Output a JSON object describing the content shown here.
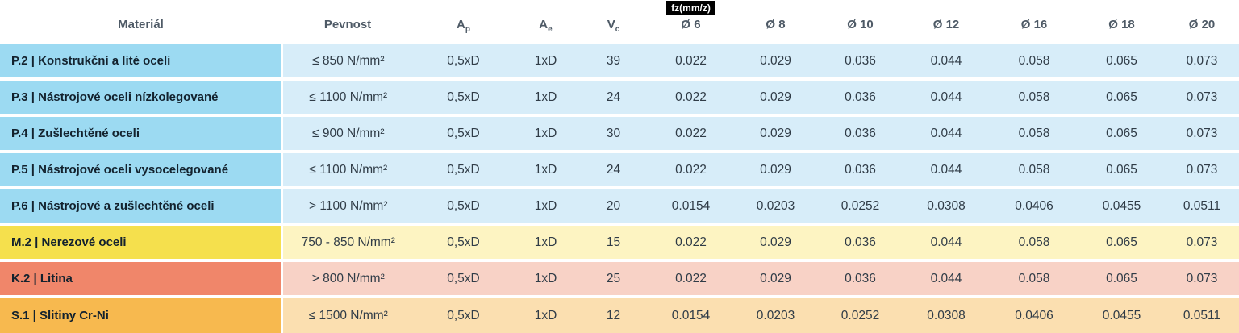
{
  "colors": {
    "header_text": "#4e5a66",
    "data_text": "#303c47",
    "material_text": "#13222e",
    "badge_bg": "#000000",
    "badge_text": "#ffffff",
    "themes": {
      "blue": {
        "material": "#9cdaf2",
        "row": "#d7edf9"
      },
      "yellow": {
        "material": "#f5e04d",
        "row": "#fdf4c2"
      },
      "salmon": {
        "material": "#f0866a",
        "row": "#f8d2c6"
      },
      "orange": {
        "material": "#f7b94f",
        "row": "#fbdfb0"
      }
    }
  },
  "chart_data": {
    "type": "table",
    "headers": {
      "material": "Materiál",
      "pevnost": "Pevnost",
      "ap_base": "A",
      "ap_sub": "p",
      "ae_base": "A",
      "ae_sub": "e",
      "vc_base": "V",
      "vc_sub": "c",
      "fz_badge": "fz(mm/z)",
      "diameters": [
        "Ø 6",
        "Ø 8",
        "Ø 10",
        "Ø 12",
        "Ø 16",
        "Ø 18",
        "Ø 20"
      ]
    },
    "rows": [
      {
        "material": "P.2 | Konstrukční a lité oceli",
        "pevnost": "≤ 850 N/mm²",
        "ap": "0,5xD",
        "ae": "1xD",
        "vc": "39",
        "theme": "blue",
        "fz": [
          "0.022",
          "0.029",
          "0.036",
          "0.044",
          "0.058",
          "0.065",
          "0.073"
        ]
      },
      {
        "material": "P.3 | Nástrojové oceli nízkolegované",
        "pevnost": "≤ 1100 N/mm²",
        "ap": "0,5xD",
        "ae": "1xD",
        "vc": "24",
        "theme": "blue",
        "fz": [
          "0.022",
          "0.029",
          "0.036",
          "0.044",
          "0.058",
          "0.065",
          "0.073"
        ]
      },
      {
        "material": "P.4 | Zušlechtěné oceli",
        "pevnost": "≤ 900 N/mm²",
        "ap": "0,5xD",
        "ae": "1xD",
        "vc": "30",
        "theme": "blue",
        "fz": [
          "0.022",
          "0.029",
          "0.036",
          "0.044",
          "0.058",
          "0.065",
          "0.073"
        ]
      },
      {
        "material": "P.5 | Nástrojové oceli vysocelegované",
        "pevnost": "≤ 1100 N/mm²",
        "ap": "0,5xD",
        "ae": "1xD",
        "vc": "24",
        "theme": "blue",
        "fz": [
          "0.022",
          "0.029",
          "0.036",
          "0.044",
          "0.058",
          "0.065",
          "0.073"
        ]
      },
      {
        "material": "P.6 | Nástrojové a zušlechtěné oceli",
        "pevnost": "> 1100 N/mm²",
        "ap": "0,5xD",
        "ae": "1xD",
        "vc": "20",
        "theme": "blue",
        "fz": [
          "0.0154",
          "0.0203",
          "0.0252",
          "0.0308",
          "0.0406",
          "0.0455",
          "0.0511"
        ]
      },
      {
        "material": "M.2 | Nerezové oceli",
        "pevnost": "750 - 850 N/mm²",
        "ap": "0,5xD",
        "ae": "1xD",
        "vc": "15",
        "theme": "yellow",
        "fz": [
          "0.022",
          "0.029",
          "0.036",
          "0.044",
          "0.058",
          "0.065",
          "0.073"
        ]
      },
      {
        "material": "K.2 | Litina",
        "pevnost": "> 800 N/mm²",
        "ap": "0,5xD",
        "ae": "1xD",
        "vc": "25",
        "theme": "salmon",
        "fz": [
          "0.022",
          "0.029",
          "0.036",
          "0.044",
          "0.058",
          "0.065",
          "0.073"
        ]
      },
      {
        "material": "S.1 | Slitiny Cr-Ni",
        "pevnost": "≤ 1500 N/mm²",
        "ap": "0,5xD",
        "ae": "1xD",
        "vc": "12",
        "theme": "orange",
        "fz": [
          "0.0154",
          "0.0203",
          "0.0252",
          "0.0308",
          "0.0406",
          "0.0455",
          "0.0511"
        ]
      }
    ]
  }
}
